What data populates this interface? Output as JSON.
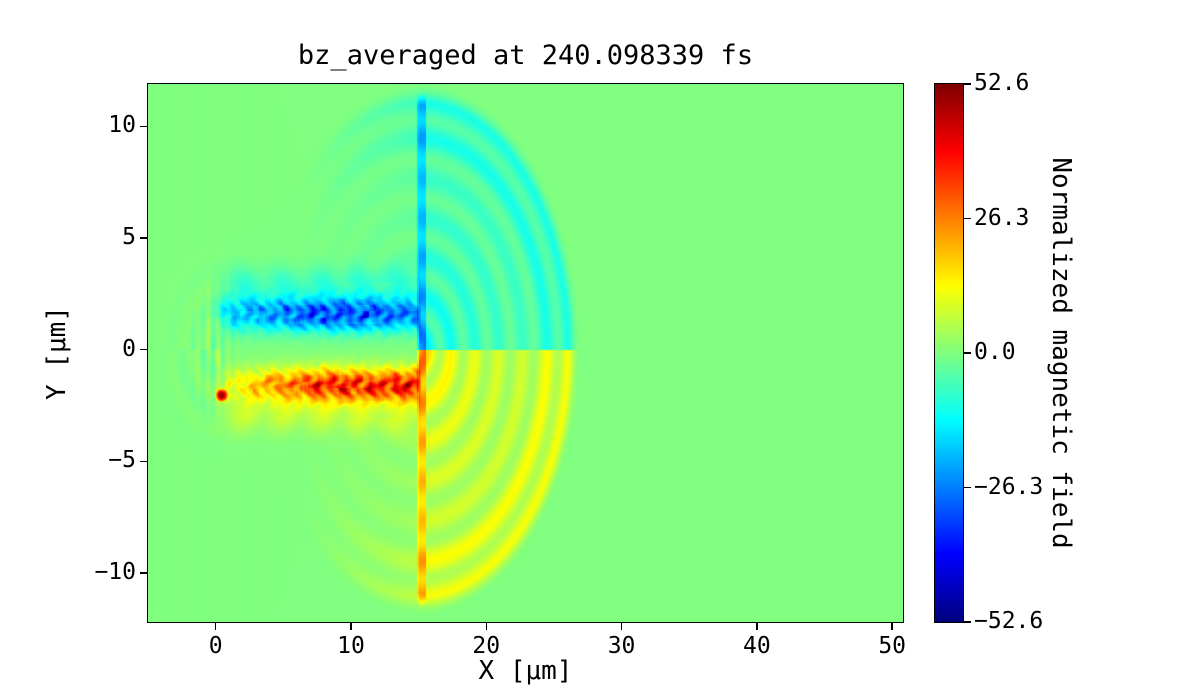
{
  "chart_data": {
    "type": "heatmap",
    "title": "bz_averaged at 240.098339 fs",
    "quantity": "bz_averaged",
    "time_fs": 240.098339,
    "xlabel": "X [μm]",
    "ylabel": "Y [μm]",
    "x_range": [
      -5.0,
      50.8
    ],
    "y_range": [
      -12.2,
      11.9
    ],
    "x_ticks": [
      0,
      10,
      20,
      30,
      40,
      50
    ],
    "x_tick_labels": [
      "0",
      "10",
      "20",
      "30",
      "40",
      "50"
    ],
    "y_ticks": [
      10,
      5,
      0,
      -5,
      -10
    ],
    "y_tick_labels": [
      "10",
      "5",
      "0",
      "−5",
      "−10"
    ],
    "colormap": "jet",
    "vmin": -52.6,
    "vmax": 52.6,
    "grid": false,
    "legend_position": "right-colorbar",
    "colorbar": {
      "label": "Normalized magnetic field",
      "ticks": [
        52.6,
        26.3,
        0.0,
        -26.3,
        -52.6
      ],
      "tick_labels": [
        "52.6",
        "26.3",
        "0.0",
        "−26.3",
        "−52.6"
      ]
    },
    "field_features": {
      "background_value": 0,
      "channel": {
        "x_start": -0.4,
        "x_end": 15.2,
        "lobe_y": 1.6,
        "lobe_sigma": 0.75,
        "upper_amp": -48,
        "lower_amp": 52,
        "halo_y": 2.95,
        "halo_amp": 8
      },
      "target_line": {
        "x": 15.2,
        "half_width": 0.35,
        "y_extent": 11.5,
        "upper_value": -13,
        "lower_value": 12
      },
      "blast_wave": {
        "center_x": 15,
        "center_y": 0,
        "radius": 11.9,
        "ring_wavenumber": 3.6,
        "upper_sign": -1,
        "lower_sign": 1
      },
      "entrance_spot": {
        "x": 0.45,
        "y": -2.05,
        "value": 45
      }
    }
  }
}
